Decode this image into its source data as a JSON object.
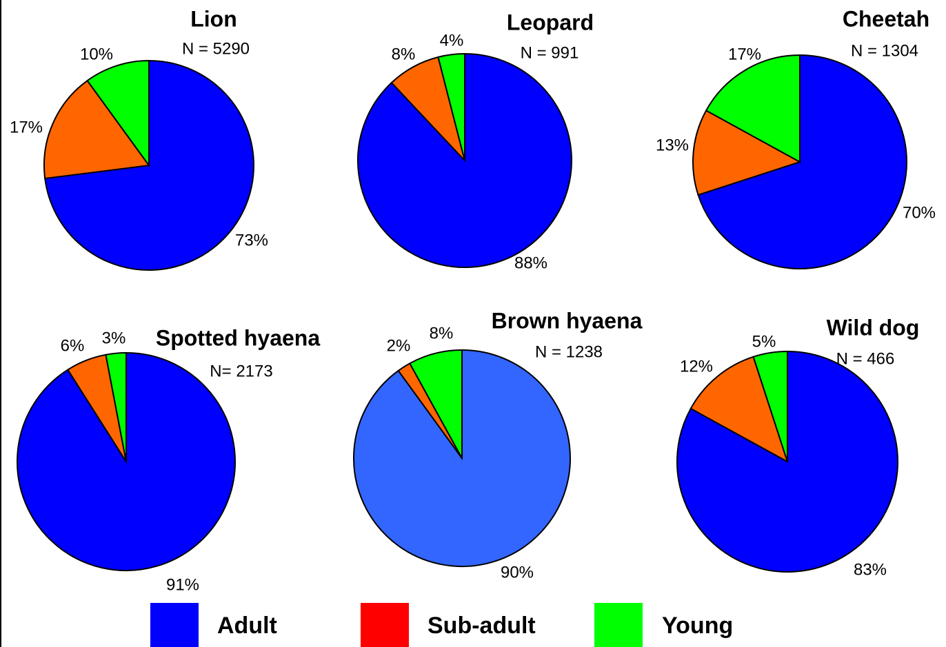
{
  "chart_data": [
    {
      "type": "pie",
      "title": "Lion",
      "subtitle": "N = 5290",
      "values": [
        73,
        17,
        10
      ],
      "value_labels": [
        "73%",
        "17%",
        "10%"
      ],
      "colors": [
        "#0000ff",
        "#ff6600",
        "#00ff00"
      ]
    },
    {
      "type": "pie",
      "title": "Leopard",
      "subtitle": "N = 991",
      "values": [
        88,
        8,
        4
      ],
      "value_labels": [
        "88%",
        "8%",
        "4%"
      ],
      "colors": [
        "#0000ff",
        "#ff6600",
        "#00ff00"
      ]
    },
    {
      "type": "pie",
      "title": "Cheetah",
      "subtitle": "N = 1304",
      "values": [
        70,
        13,
        17
      ],
      "value_labels": [
        "70%",
        "13%",
        "17%"
      ],
      "colors": [
        "#0000ff",
        "#ff6600",
        "#00ff00"
      ]
    },
    {
      "type": "pie",
      "title": "Spotted hyaena",
      "subtitle": "N= 2173",
      "values": [
        91,
        6,
        3
      ],
      "value_labels": [
        "91%",
        "6%",
        "3%"
      ],
      "colors": [
        "#0000ff",
        "#ff6600",
        "#00ff00"
      ]
    },
    {
      "type": "pie",
      "title": "Brown hyaena",
      "subtitle": "N = 1238",
      "values": [
        90,
        2,
        8
      ],
      "value_labels": [
        "90%",
        "2%",
        "8%"
      ],
      "colors": [
        "#3366ff",
        "#ff6600",
        "#00ff00"
      ]
    },
    {
      "type": "pie",
      "title": "Wild dog",
      "subtitle": "N = 466",
      "values": [
        83,
        12,
        5
      ],
      "value_labels": [
        "83%",
        "12%",
        "5%"
      ],
      "colors": [
        "#0000ff",
        "#ff6600",
        "#00ff00"
      ]
    }
  ],
  "legend": [
    {
      "name": "Adult",
      "color": "#0000ff"
    },
    {
      "name": "Sub-adult",
      "color": "#ff0000"
    },
    {
      "name": "Young",
      "color": "#00ff00"
    }
  ]
}
